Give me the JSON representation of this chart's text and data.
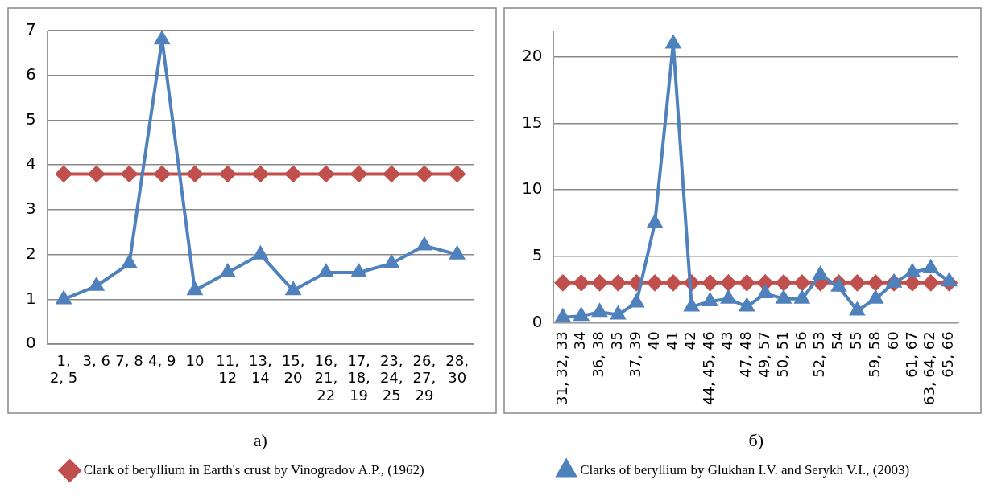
{
  "chart_data": [
    {
      "type": "line",
      "categories": [
        "1, 2, 5",
        "3, 6",
        "7, 8",
        "4, 9",
        "10",
        "11, 12",
        "13, 14",
        "15, 20",
        "16, 21, 22",
        "17, 18, 19",
        "23, 24, 25",
        "26, 27, 29",
        "28, 30"
      ],
      "series": [
        {
          "name": "Clark of beryllium in Earth's crust by Vinogradov A.P., (1962)",
          "color": "#c0504d",
          "marker": "diamond",
          "values": [
            3.8,
            3.8,
            3.8,
            3.8,
            3.8,
            3.8,
            3.8,
            3.8,
            3.8,
            3.8,
            3.8,
            3.8,
            3.8
          ]
        },
        {
          "color": "#4f81bd",
          "marker": "triangle",
          "values": [
            1,
            1.3,
            1.8,
            6.8,
            1.2,
            1.6,
            2,
            1.2,
            1.6,
            1.6,
            1.8,
            2.2,
            2
          ]
        }
      ],
      "ylim": [
        0,
        7
      ],
      "yticks": [
        0,
        1,
        2,
        3,
        4,
        5,
        6,
        7
      ],
      "grid": "y",
      "legend": "bottom",
      "annotations": [
        "а)"
      ]
    },
    {
      "type": "line",
      "categories": [
        "31, 32, 33",
        "34",
        "36, 38",
        "35",
        "37, 39",
        "40",
        "41",
        "42",
        "44, 45, 46",
        "43",
        "47, 48",
        "49, 57",
        "50, 51",
        "56",
        "52, 53",
        "54",
        "55",
        "59, 58",
        "60",
        "61, 67",
        "63, 64, 62",
        "65, 66"
      ],
      "series": [
        {
          "color": "#c0504d",
          "marker": "diamond",
          "values": [
            3,
            3,
            3,
            3,
            3,
            3,
            3,
            3,
            3,
            3,
            3,
            3,
            3,
            3,
            3,
            3,
            3,
            3,
            3,
            3,
            3,
            3
          ]
        },
        {
          "name": "Clarks of beryllium by Glukhan I.V. and Serykh V.I., (2003)",
          "color": "#4f81bd",
          "marker": "triangle",
          "values": [
            0.4,
            0.5,
            0.8,
            0.6,
            1.5,
            7.5,
            21,
            1.2,
            1.6,
            1.8,
            1.2,
            2.2,
            1.8,
            1.8,
            3.6,
            2.7,
            0.9,
            1.8,
            3,
            3.8,
            4.1,
            3.1
          ]
        }
      ],
      "ylim": [
        0,
        22
      ],
      "yticks": [
        0,
        5,
        10,
        15,
        20
      ],
      "grid": "y",
      "legend": "bottom",
      "annotations": [
        "б)"
      ]
    }
  ]
}
